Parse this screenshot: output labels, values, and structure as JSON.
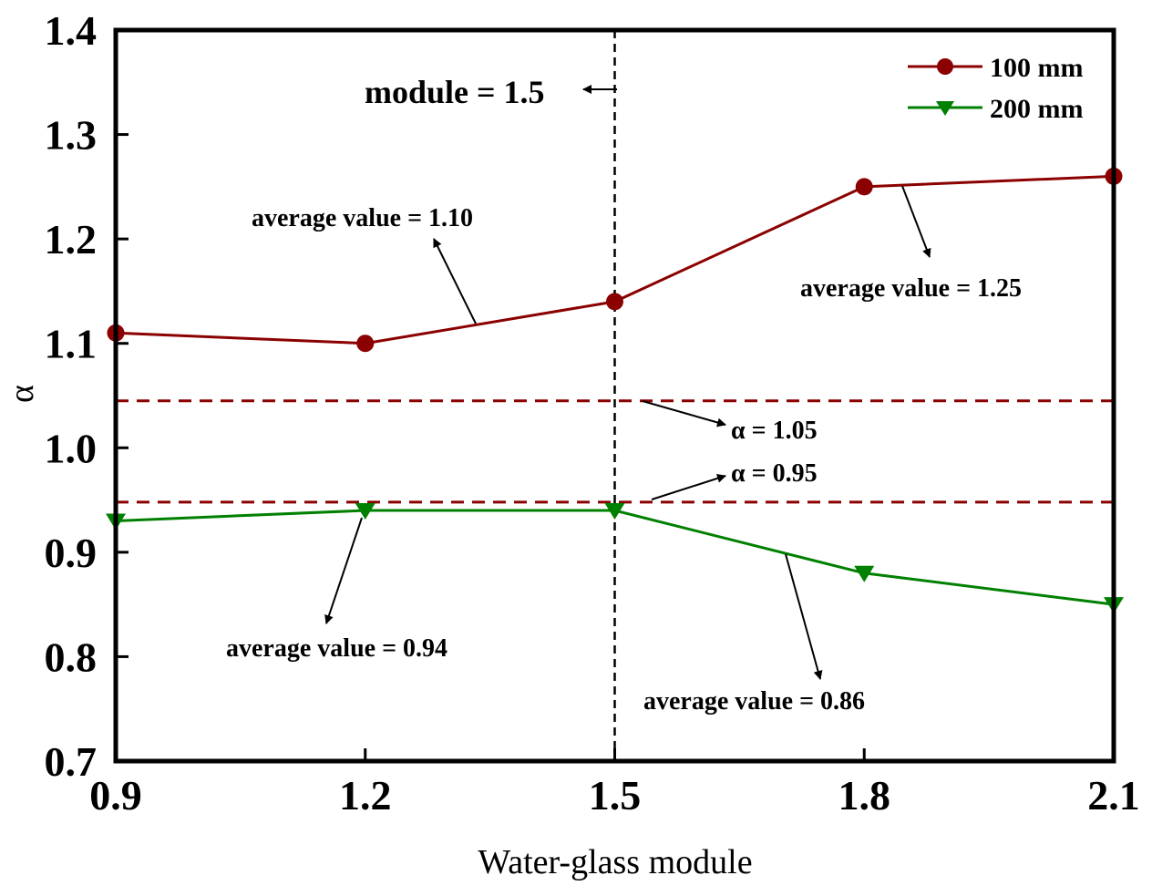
{
  "chart_data": {
    "type": "line",
    "xlabel": "Water-glass module",
    "ylabel": "α",
    "xlim": [
      0.9,
      2.1
    ],
    "ylim": [
      0.7,
      1.4
    ],
    "xticks": [
      "0.9",
      "1.2",
      "1.5",
      "1.8",
      "2.1"
    ],
    "yticks": [
      "0.7",
      "0.8",
      "0.9",
      "1.0",
      "1.1",
      "1.2",
      "1.3",
      "1.4"
    ],
    "x": [
      0.9,
      1.2,
      1.5,
      1.8,
      2.1
    ],
    "series": [
      {
        "name": "100 mm",
        "values": [
          1.11,
          1.1,
          1.14,
          1.25,
          1.26
        ],
        "color": "#8b0000",
        "marker": "circle"
      },
      {
        "name": "200 mm",
        "values": [
          0.93,
          0.94,
          0.94,
          0.88,
          0.85
        ],
        "color": "#008000",
        "marker": "triangle-down"
      }
    ],
    "reference_lines": [
      {
        "orientation": "horizontal",
        "value": 1.045,
        "label": "α = 1.05",
        "color": "#8b0000",
        "style": "dashed"
      },
      {
        "orientation": "horizontal",
        "value": 0.948,
        "label": "α = 0.95",
        "color": "#8b0000",
        "style": "dashed"
      },
      {
        "orientation": "vertical",
        "value": 1.5,
        "label": "module = 1.5",
        "color": "#000000",
        "style": "dashed"
      }
    ],
    "annotations": [
      {
        "text": "average value = 1.10"
      },
      {
        "text": "average value = 1.25"
      },
      {
        "text": "average value = 0.94"
      },
      {
        "text": "average value = 0.86"
      }
    ],
    "legend": "top-right",
    "grid": false
  }
}
